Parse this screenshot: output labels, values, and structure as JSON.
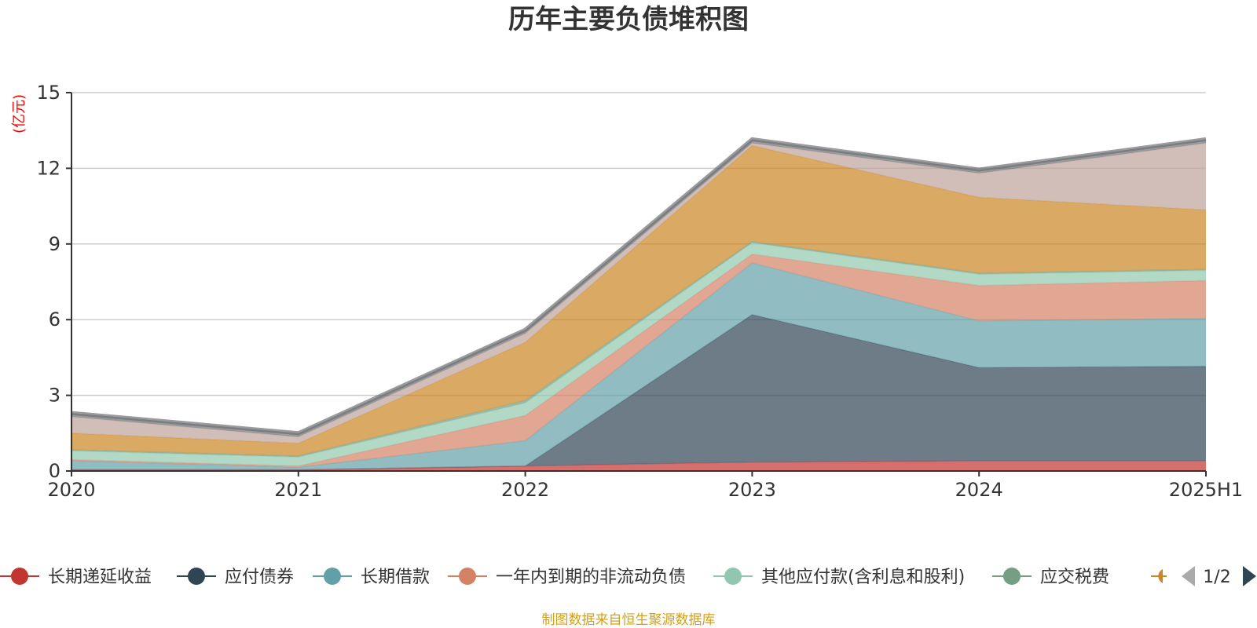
{
  "chart_data": {
    "type": "area",
    "stacked": true,
    "title": "历年主要负债堆积图",
    "unit_label": "(亿元)",
    "categories": [
      "2020",
      "2021",
      "2022",
      "2023",
      "2024",
      "2025H1"
    ],
    "ylim": [
      0,
      15
    ],
    "yticks": [
      0,
      3,
      6,
      9,
      12,
      15
    ],
    "grid": true,
    "series": [
      {
        "name": "长期递延收益",
        "color": "#c23531",
        "values": [
          0.05,
          0.05,
          0.2,
          0.35,
          0.4,
          0.4
        ]
      },
      {
        "name": "应付债券",
        "color": "#2f4554",
        "values": [
          0,
          0,
          0,
          5.85,
          3.7,
          3.75
        ]
      },
      {
        "name": "长期借款",
        "color": "#61a0a8",
        "values": [
          0.35,
          0.1,
          1.0,
          2.05,
          1.85,
          1.9
        ]
      },
      {
        "name": "一年内到期的非流动负债",
        "color": "#d48265",
        "values": [
          0.05,
          0.05,
          1.0,
          0.35,
          1.4,
          1.5
        ]
      },
      {
        "name": "其他应付款(含利息和股利)",
        "color": "#91c7ae",
        "values": [
          0.35,
          0.35,
          0.5,
          0.45,
          0.45,
          0.4
        ]
      },
      {
        "name": "应交税费",
        "color": "#749f83",
        "values": [
          0.05,
          0.05,
          0.1,
          0.05,
          0.05,
          0.05
        ]
      },
      {
        "name": "",
        "color": "#ca8622",
        "values": [
          0.65,
          0.5,
          2.3,
          3.8,
          3.0,
          2.35
        ]
      },
      {
        "name": "",
        "color": "#bda29a",
        "values": [
          0.65,
          0.25,
          0.35,
          0.1,
          0.95,
          2.65
        ]
      },
      {
        "name": "",
        "color": "#6e7074",
        "values": [
          0.15,
          0.15,
          0.15,
          0.15,
          0.15,
          0.15
        ]
      }
    ]
  },
  "legend": {
    "items": [
      "长期递延收益",
      "应付债券",
      "长期借款",
      "一年内到期的非流动负债",
      "其他应付款(含利息和股利)",
      "应交税费"
    ],
    "page": "1/2"
  },
  "source_note": "制图数据来自恒生聚源数据库",
  "icons": {
    "prev": "prev-page-icon",
    "next": "next-page-icon"
  }
}
